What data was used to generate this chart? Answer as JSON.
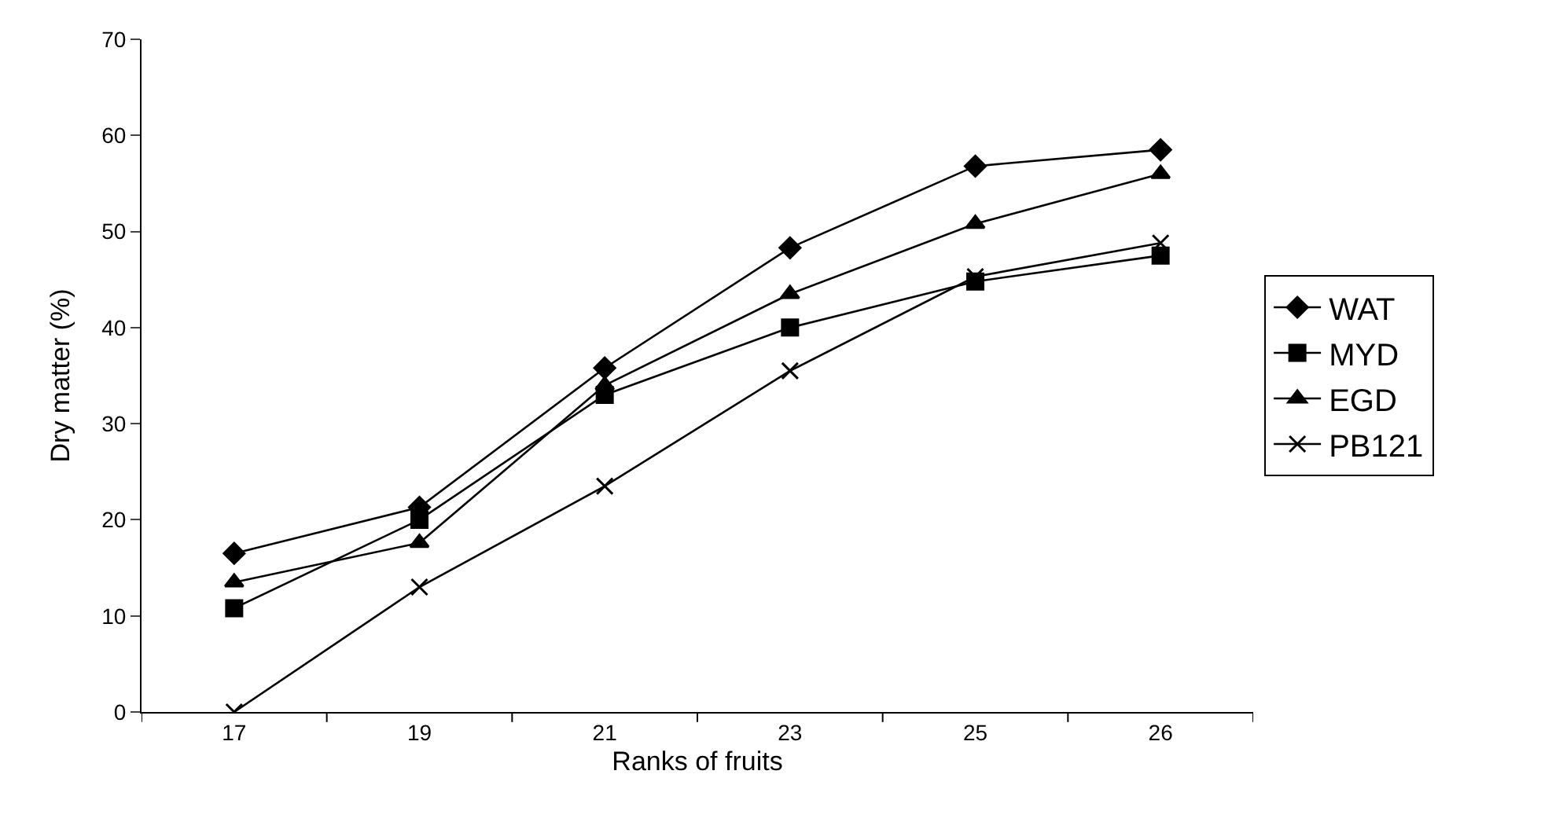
{
  "chart_data": {
    "type": "line",
    "xlabel": "Ranks of fruits",
    "ylabel": "Dry matter (%)",
    "categories": [
      "17",
      "19",
      "21",
      "23",
      "25",
      "26"
    ],
    "series": [
      {
        "name": "WAT",
        "color": "#000000",
        "marker": "diamond",
        "values": [
          16.5,
          21.3,
          35.8,
          48.3,
          56.8,
          58.5
        ]
      },
      {
        "name": "MYD",
        "color": "#000000",
        "marker": "square",
        "values": [
          10.8,
          20,
          33,
          40,
          44.8,
          47.5
        ]
      },
      {
        "name": "EGD",
        "color": "#000000",
        "marker": "triangle",
        "values": [
          13.5,
          17.6,
          34,
          43.5,
          50.8,
          56
        ]
      },
      {
        "name": "PB121",
        "color": "#000000",
        "marker": "cross",
        "values": [
          0,
          13,
          23.5,
          35.5,
          45.3,
          48.8
        ]
      }
    ],
    "ylim": [
      0,
      70
    ],
    "yticks": [
      0,
      10,
      20,
      30,
      40,
      50,
      60,
      70
    ],
    "legend": "right",
    "line_style": "solid"
  }
}
